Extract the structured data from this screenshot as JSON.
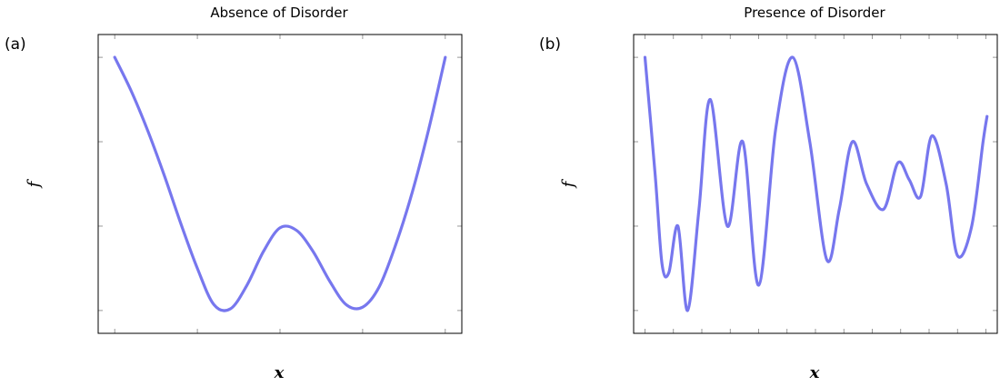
{
  "chart_data": [
    {
      "type": "line",
      "panel_label": "(a)",
      "title": "Absence of Disorder",
      "xlabel": "x",
      "ylabel": "f",
      "tick_labels_shown": false,
      "grid": false,
      "color": "#7777ee",
      "xlim": [
        -0.2,
        4.2
      ],
      "ylim": [
        -0.27,
        3.27
      ],
      "x_ticks": [
        0,
        1,
        2,
        3,
        4
      ],
      "y_ticks": [
        0,
        1,
        2,
        3
      ],
      "series": [
        {
          "x": [
            0,
            0.2,
            0.4,
            0.6,
            0.8,
            1.0,
            1.2,
            1.4,
            1.6,
            1.8,
            2.0,
            2.2,
            2.4,
            2.6,
            2.8,
            3.0,
            3.2,
            3.4,
            3.6,
            3.8,
            4.0
          ],
          "y": [
            3.0,
            2.6,
            2.13,
            1.6,
            1.03,
            0.5,
            0.07,
            0.02,
            0.3,
            0.7,
            0.98,
            0.95,
            0.7,
            0.35,
            0.07,
            0.04,
            0.28,
            0.78,
            1.4,
            2.15,
            3.0
          ]
        }
      ]
    },
    {
      "type": "line",
      "panel_label": "(b)",
      "title": "Presence of Disorder",
      "xlabel": "x",
      "ylabel": "f",
      "tick_labels_shown": false,
      "grid": false,
      "color": "#7777ee",
      "xlim": [
        -0.2,
        6.2
      ],
      "ylim": [
        -0.27,
        3.27
      ],
      "x_ticks": [
        0,
        0.5,
        1,
        1.5,
        2,
        2.5,
        3,
        3.5,
        4,
        4.5,
        5,
        5.5,
        6
      ],
      "y_ticks": [
        0,
        1,
        2,
        3
      ],
      "series": [
        {
          "x": [
            0,
            0.18,
            0.3,
            0.42,
            0.58,
            0.75,
            0.95,
            1.15,
            1.45,
            1.72,
            2.0,
            2.3,
            2.6,
            2.9,
            3.2,
            3.42,
            3.65,
            3.9,
            4.2,
            4.45,
            4.65,
            4.85,
            5.05,
            5.3,
            5.5,
            5.75,
            5.95,
            6.02
          ],
          "y": [
            3.0,
            1.6,
            0.55,
            0.45,
            1.0,
            0.0,
            1.2,
            2.5,
            1.0,
            2.0,
            0.3,
            2.15,
            3.0,
            2.0,
            0.6,
            1.2,
            2.0,
            1.5,
            1.2,
            1.75,
            1.55,
            1.35,
            2.07,
            1.5,
            0.65,
            1.0,
            2.0,
            2.3
          ]
        }
      ]
    }
  ]
}
